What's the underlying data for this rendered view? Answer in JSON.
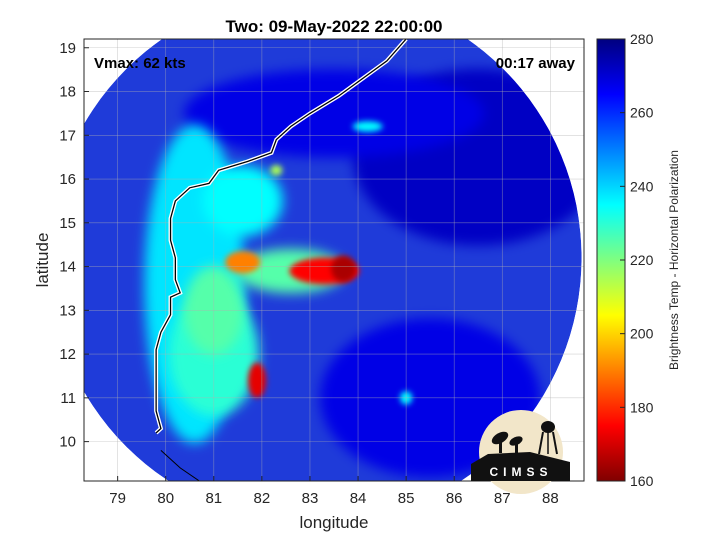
{
  "chart_data": {
    "type": "heatmap",
    "title": "Two: 09-May-2022 22:00:00",
    "xlabel": "longitude",
    "ylabel": "latitude",
    "xlim": [
      78.3,
      88.7
    ],
    "ylim": [
      9.1,
      19.2
    ],
    "xticks": [
      79,
      80,
      81,
      82,
      83,
      84,
      85,
      86,
      87,
      88
    ],
    "yticks": [
      10,
      11,
      12,
      13,
      14,
      15,
      16,
      17,
      18,
      19
    ],
    "grid": true,
    "annotations": {
      "vmax": "Vmax: 62 kts",
      "time_offset": "00:17 away"
    },
    "colorbar": {
      "label": "Brightness Temp - Horizontal Polarization",
      "range": [
        160,
        280
      ],
      "ticks": [
        160,
        180,
        200,
        220,
        240,
        260,
        280
      ],
      "colormap": "jet"
    },
    "swath": {
      "center": [
        83.1,
        14.2
      ],
      "radius_deg": 5.55
    },
    "features": [
      {
        "name": "eyewall band",
        "lon": 83.3,
        "lat": 13.9,
        "temp": 175
      },
      {
        "name": "west band",
        "lon": 81.6,
        "lat": 14.1,
        "temp": 190
      },
      {
        "name": "south band",
        "lon": 81.9,
        "lat": 11.4,
        "temp": 172
      },
      {
        "name": "coastal rainband",
        "lon": 81.0,
        "lat": 13.0,
        "temp": 225
      },
      {
        "name": "small cell",
        "lon": 82.3,
        "lat": 16.2,
        "temp": 215
      }
    ],
    "coastline": [
      [
        85.0,
        19.2
      ],
      [
        84.6,
        18.7
      ],
      [
        84.1,
        18.3
      ],
      [
        83.6,
        17.9
      ],
      [
        83.0,
        17.5
      ],
      [
        82.6,
        17.2
      ],
      [
        82.3,
        16.9
      ],
      [
        82.2,
        16.6
      ],
      [
        81.7,
        16.4
      ],
      [
        81.4,
        16.3
      ],
      [
        81.1,
        16.2
      ],
      [
        80.9,
        15.9
      ],
      [
        80.5,
        15.8
      ],
      [
        80.2,
        15.5
      ],
      [
        80.1,
        15.1
      ],
      [
        80.1,
        14.6
      ],
      [
        80.2,
        14.2
      ],
      [
        80.2,
        13.7
      ],
      [
        80.3,
        13.4
      ],
      [
        80.1,
        13.3
      ],
      [
        80.1,
        12.9
      ],
      [
        79.9,
        12.5
      ],
      [
        79.8,
        12.1
      ],
      [
        79.8,
        11.6
      ],
      [
        79.8,
        11.2
      ],
      [
        79.8,
        10.7
      ],
      [
        79.9,
        10.3
      ],
      [
        79.8,
        10.2
      ]
    ],
    "sri_lanka": [
      [
        79.9,
        9.8
      ],
      [
        80.3,
        9.4
      ],
      [
        80.7,
        9.1
      ]
    ]
  },
  "logo": {
    "text": "CIMSS"
  }
}
